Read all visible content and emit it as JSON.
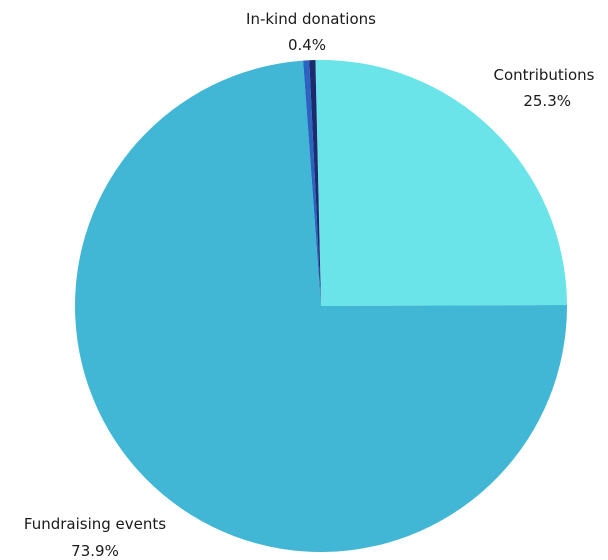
{
  "chart_data": {
    "type": "pie",
    "title": "",
    "legend": "none",
    "start_angle_deg": -1.3,
    "direction": "clockwise",
    "slices": [
      {
        "label": "Contributions",
        "value": 25.3,
        "display": "25.3%",
        "color": "#6ae4e9"
      },
      {
        "label": "Fundraising events",
        "value": 73.9,
        "display": "73.9%",
        "color": "#41b7d5"
      },
      {
        "label": "",
        "value": 0.4,
        "display": "",
        "color": "#2b63c0"
      },
      {
        "label": "In-kind donations",
        "value": 0.4,
        "display": "0.4%",
        "color": "#1c2a6e"
      }
    ]
  }
}
